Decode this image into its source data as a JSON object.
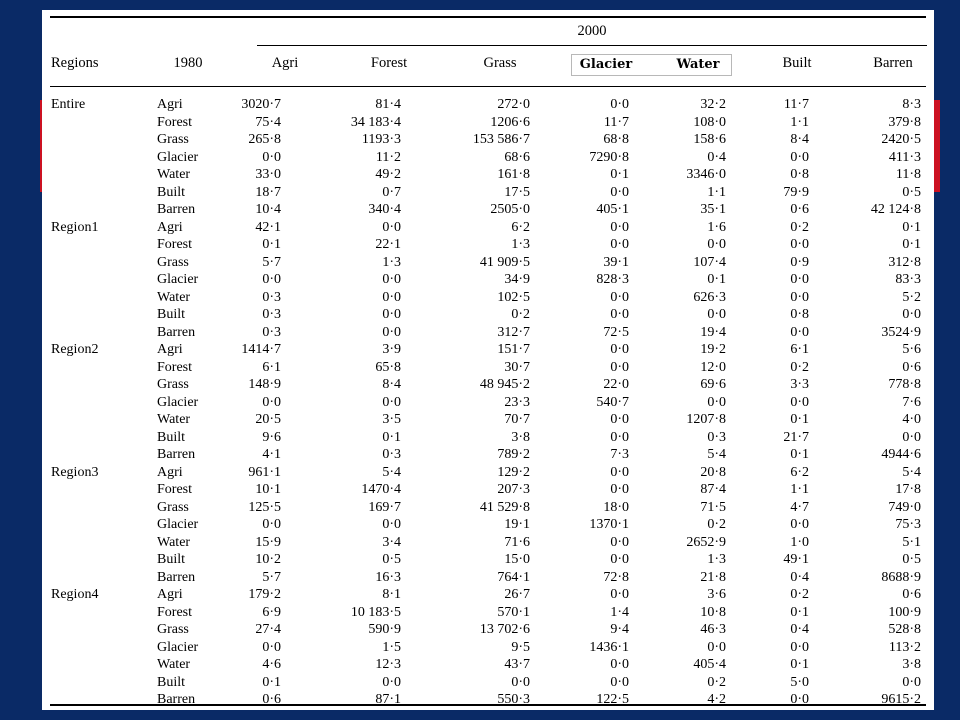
{
  "header": {
    "regions": "Regions",
    "year_from": "1980",
    "year_to": "2000",
    "columns": [
      "Agri",
      "Forest",
      "Grass",
      "Glacier",
      "Water",
      "Built",
      "Barren"
    ]
  },
  "highlight_colors": {
    "background": "#0a2a66",
    "band": "#cc1122"
  },
  "regions": [
    {
      "name": "Entire",
      "rows": [
        {
          "cls": "Agri",
          "v": [
            "3020·7",
            "81·4",
            "272·0",
            "0·0",
            "32·2",
            "11·7",
            "8·3"
          ]
        },
        {
          "cls": "Forest",
          "v": [
            "75·4",
            "34 183·4",
            "1206·6",
            "11·7",
            "108·0",
            "1·1",
            "379·8"
          ]
        },
        {
          "cls": "Grass",
          "v": [
            "265·8",
            "1193·3",
            "153 586·7",
            "68·8",
            "158·6",
            "8·4",
            "2420·5"
          ]
        },
        {
          "cls": "Glacier",
          "v": [
            "0·0",
            "11·2",
            "68·6",
            "7290·8",
            "0·4",
            "0·0",
            "411·3"
          ]
        },
        {
          "cls": "Water",
          "v": [
            "33·0",
            "49·2",
            "161·8",
            "0·1",
            "3346·0",
            "0·8",
            "11·8"
          ]
        },
        {
          "cls": "Built",
          "v": [
            "18·7",
            "0·7",
            "17·5",
            "0·0",
            "1·1",
            "79·9",
            "0·5"
          ]
        },
        {
          "cls": "Barren",
          "v": [
            "10·4",
            "340·4",
            "2505·0",
            "405·1",
            "35·1",
            "0·6",
            "42 124·8"
          ]
        }
      ]
    },
    {
      "name": "Region1",
      "rows": [
        {
          "cls": "Agri",
          "v": [
            "42·1",
            "0·0",
            "6·2",
            "0·0",
            "1·6",
            "0·2",
            "0·1"
          ]
        },
        {
          "cls": "Forest",
          "v": [
            "0·1",
            "22·1",
            "1·3",
            "0·0",
            "0·0",
            "0·0",
            "0·1"
          ]
        },
        {
          "cls": "Grass",
          "v": [
            "5·7",
            "1·3",
            "41 909·5",
            "39·1",
            "107·4",
            "0·9",
            "312·8"
          ]
        },
        {
          "cls": "Glacier",
          "v": [
            "0·0",
            "0·0",
            "34·9",
            "828·3",
            "0·1",
            "0·0",
            "83·3"
          ]
        },
        {
          "cls": "Water",
          "v": [
            "0·3",
            "0·0",
            "102·5",
            "0·0",
            "626·3",
            "0·0",
            "5·2"
          ]
        },
        {
          "cls": "Built",
          "v": [
            "0·3",
            "0·0",
            "0·2",
            "0·0",
            "0·0",
            "0·8",
            "0·0"
          ]
        },
        {
          "cls": "Barren",
          "v": [
            "0·3",
            "0·0",
            "312·7",
            "72·5",
            "19·4",
            "0·0",
            "3524·9"
          ]
        }
      ]
    },
    {
      "name": "Region2",
      "rows": [
        {
          "cls": "Agri",
          "v": [
            "1414·7",
            "3·9",
            "151·7",
            "0·0",
            "19·2",
            "6·1",
            "5·6"
          ]
        },
        {
          "cls": "Forest",
          "v": [
            "6·1",
            "65·8",
            "30·7",
            "0·0",
            "12·0",
            "0·2",
            "0·6"
          ]
        },
        {
          "cls": "Grass",
          "v": [
            "148·9",
            "8·4",
            "48 945·2",
            "22·0",
            "69·6",
            "3·3",
            "778·8"
          ]
        },
        {
          "cls": "Glacier",
          "v": [
            "0·0",
            "0·0",
            "23·3",
            "540·7",
            "0·0",
            "0·0",
            "7·6"
          ]
        },
        {
          "cls": "Water",
          "v": [
            "20·5",
            "3·5",
            "70·7",
            "0·0",
            "1207·8",
            "0·1",
            "4·0"
          ]
        },
        {
          "cls": "Built",
          "v": [
            "9·6",
            "0·1",
            "3·8",
            "0·0",
            "0·3",
            "21·7",
            "0·0"
          ]
        },
        {
          "cls": "Barren",
          "v": [
            "4·1",
            "0·3",
            "789·2",
            "7·3",
            "5·4",
            "0·1",
            "4944·6"
          ]
        }
      ]
    },
    {
      "name": "Region3",
      "rows": [
        {
          "cls": "Agri",
          "v": [
            "961·1",
            "5·4",
            "129·2",
            "0·0",
            "20·8",
            "6·2",
            "5·4"
          ]
        },
        {
          "cls": "Forest",
          "v": [
            "10·1",
            "1470·4",
            "207·3",
            "0·0",
            "87·4",
            "1·1",
            "17·8"
          ]
        },
        {
          "cls": "Grass",
          "v": [
            "125·5",
            "169·7",
            "41 529·8",
            "18·0",
            "71·5",
            "4·7",
            "749·0"
          ]
        },
        {
          "cls": "Glacier",
          "v": [
            "0·0",
            "0·0",
            "19·1",
            "1370·1",
            "0·2",
            "0·0",
            "75·3"
          ]
        },
        {
          "cls": "Water",
          "v": [
            "15·9",
            "3·4",
            "71·6",
            "0·0",
            "2652·9",
            "1·0",
            "5·1"
          ]
        },
        {
          "cls": "Built",
          "v": [
            "10·2",
            "0·5",
            "15·0",
            "0·0",
            "1·3",
            "49·1",
            "0·5"
          ]
        },
        {
          "cls": "Barren",
          "v": [
            "5·7",
            "16·3",
            "764·1",
            "72·8",
            "21·8",
            "0·4",
            "8688·9"
          ]
        }
      ]
    },
    {
      "name": "Region4",
      "rows": [
        {
          "cls": "Agri",
          "v": [
            "179·2",
            "8·1",
            "26·7",
            "0·0",
            "3·6",
            "0·2",
            "0·6"
          ]
        },
        {
          "cls": "Forest",
          "v": [
            "6·9",
            "10 183·5",
            "570·1",
            "1·4",
            "10·8",
            "0·1",
            "100·9"
          ]
        },
        {
          "cls": "Grass",
          "v": [
            "27·4",
            "590·9",
            "13 702·6",
            "9·4",
            "46·3",
            "0·4",
            "528·8"
          ]
        },
        {
          "cls": "Glacier",
          "v": [
            "0·0",
            "1·5",
            "9·5",
            "1436·1",
            "0·0",
            "0·0",
            "113·2"
          ]
        },
        {
          "cls": "Water",
          "v": [
            "4·6",
            "12·3",
            "43·7",
            "0·0",
            "405·4",
            "0·1",
            "3·8"
          ]
        },
        {
          "cls": "Built",
          "v": [
            "0·1",
            "0·0",
            "0·0",
            "0·0",
            "0·2",
            "5·0",
            "0·0"
          ]
        },
        {
          "cls": "Barren",
          "v": [
            "0·6",
            "87·1",
            "550·3",
            "122·5",
            "4·2",
            "0·0",
            "9615·2"
          ]
        }
      ]
    }
  ]
}
